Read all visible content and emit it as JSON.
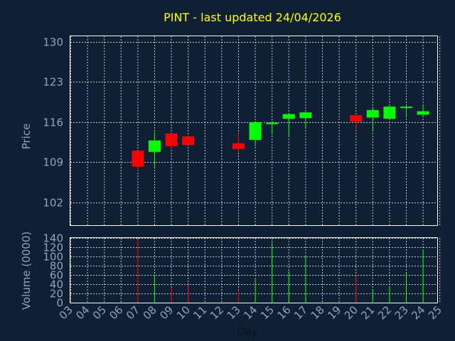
{
  "title": "PINT - last updated 24/04/2026",
  "colors": {
    "background": "#102034",
    "up": "#00ff00",
    "down": "#ff0000",
    "title": "#ffff00",
    "axis_text": "#8ca5c0"
  },
  "chart_data": [
    {
      "type": "candlestick",
      "ylabel": "Price",
      "ylim": [
        98,
        131
      ],
      "yticks": [
        130,
        123,
        116,
        109,
        102
      ],
      "grid": true,
      "candles": [
        {
          "day": "07",
          "open": 111.0,
          "high": 111.0,
          "low": 107.5,
          "close": 108.2
        },
        {
          "day": "08",
          "open": 110.8,
          "high": 114.2,
          "low": 108.0,
          "close": 112.8
        },
        {
          "day": "09",
          "open": 114.0,
          "high": 114.0,
          "low": 111.2,
          "close": 111.8
        },
        {
          "day": "10",
          "open": 113.5,
          "high": 113.7,
          "low": 112.0,
          "close": 112.0
        },
        {
          "day": "13",
          "open": 112.3,
          "high": 114.0,
          "low": 111.0,
          "close": 111.3
        },
        {
          "day": "14",
          "open": 112.9,
          "high": 116.2,
          "low": 111.8,
          "close": 116.0
        },
        {
          "day": "15",
          "open": 115.7,
          "high": 116.2,
          "low": 113.8,
          "close": 115.9
        },
        {
          "day": "16",
          "open": 116.6,
          "high": 117.5,
          "low": 113.6,
          "close": 117.4
        },
        {
          "day": "17",
          "open": 116.7,
          "high": 117.8,
          "low": 115.0,
          "close": 117.7
        },
        {
          "day": "20",
          "open": 117.2,
          "high": 117.2,
          "low": 114.8,
          "close": 116.1
        },
        {
          "day": "21",
          "open": 116.8,
          "high": 118.4,
          "low": 114.4,
          "close": 118.1
        },
        {
          "day": "22",
          "open": 116.6,
          "high": 118.8,
          "low": 116.6,
          "close": 118.7
        },
        {
          "day": "23",
          "open": 118.5,
          "high": 118.8,
          "low": 117.0,
          "close": 118.7
        },
        {
          "day": "24",
          "open": 117.3,
          "high": 118.8,
          "low": 117.0,
          "close": 117.9
        }
      ]
    },
    {
      "type": "bar",
      "ylabel": "Volume (0000)",
      "xlabel": "Day",
      "ylim": [
        0,
        140
      ],
      "yticks": [
        140,
        120,
        100,
        80,
        60,
        40,
        20,
        0
      ],
      "grid": true,
      "categories": [
        "03",
        "04",
        "05",
        "06",
        "07",
        "08",
        "09",
        "10",
        "11",
        "12",
        "13",
        "14",
        "15",
        "16",
        "17",
        "18",
        "19",
        "20",
        "21",
        "22",
        "23",
        "24",
        "25"
      ],
      "bars": [
        {
          "day": "07",
          "value": 137,
          "direction": "down"
        },
        {
          "day": "08",
          "value": 60,
          "direction": "up"
        },
        {
          "day": "09",
          "value": 33,
          "direction": "down"
        },
        {
          "day": "10",
          "value": 38,
          "direction": "down"
        },
        {
          "day": "13",
          "value": 27,
          "direction": "down"
        },
        {
          "day": "14",
          "value": 50,
          "direction": "up"
        },
        {
          "day": "15",
          "value": 130,
          "direction": "up"
        },
        {
          "day": "16",
          "value": 68,
          "direction": "up"
        },
        {
          "day": "17",
          "value": 100,
          "direction": "up"
        },
        {
          "day": "20",
          "value": 58,
          "direction": "down"
        },
        {
          "day": "21",
          "value": 28,
          "direction": "up"
        },
        {
          "day": "22",
          "value": 35,
          "direction": "up"
        },
        {
          "day": "23",
          "value": 63,
          "direction": "up"
        },
        {
          "day": "24",
          "value": 115,
          "direction": "up"
        }
      ]
    }
  ]
}
